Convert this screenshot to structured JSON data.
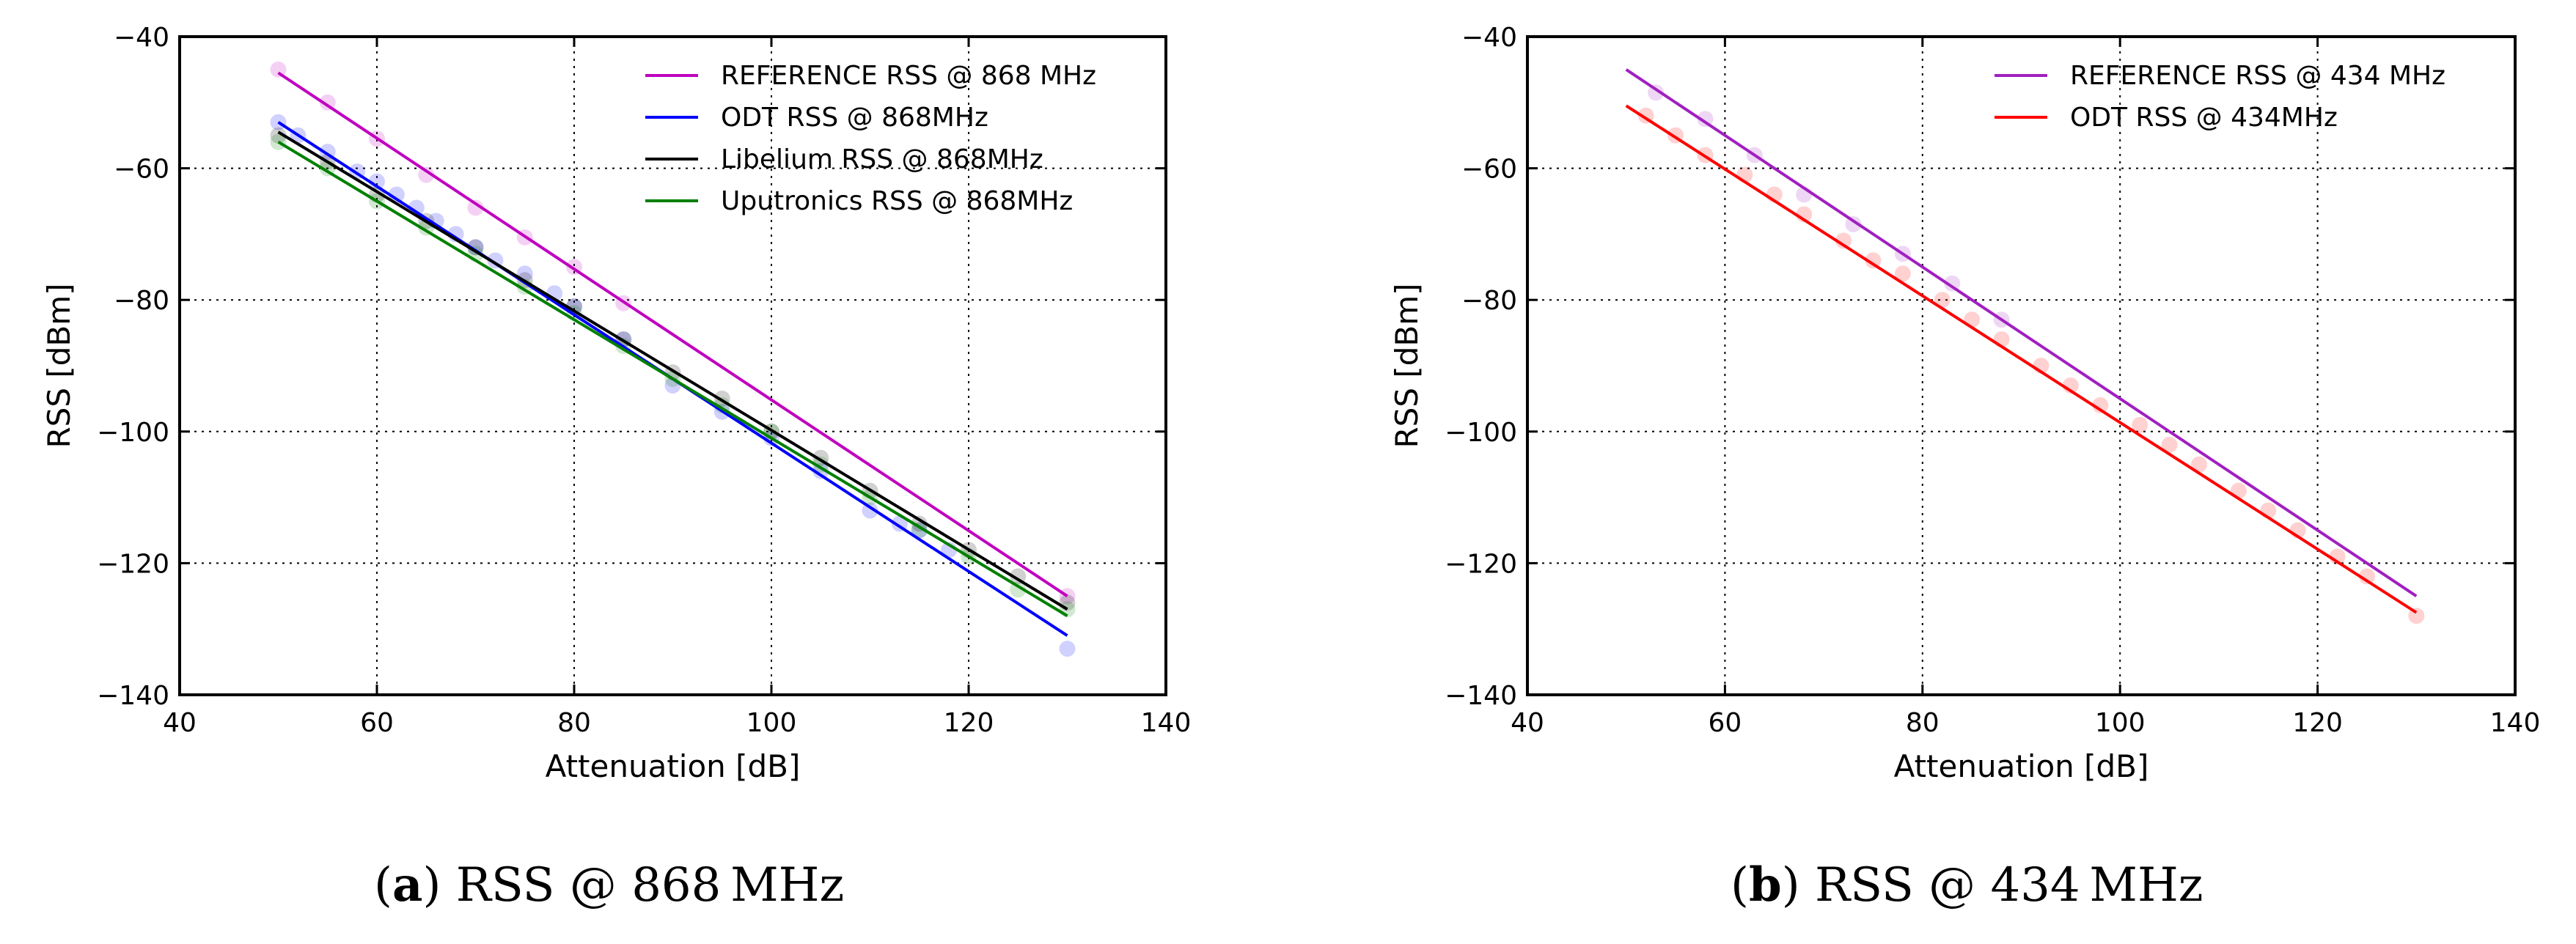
{
  "colors": {
    "reference": "#c000c0",
    "odt_868": "#0000ff",
    "libelium": "#000000",
    "uputronics": "#008000",
    "odt_434": "#ff0000",
    "reference_434": "#a020c0"
  },
  "chart_data": [
    {
      "type": "line",
      "title": "",
      "xlabel": "Attenuation [dB]",
      "ylabel": "RSS [dBm]",
      "xlim": [
        40,
        140
      ],
      "ylim": [
        -140,
        -40
      ],
      "xticks": [
        40,
        60,
        80,
        100,
        120,
        140
      ],
      "yticks": [
        -40,
        -60,
        -80,
        -100,
        -120,
        -140
      ],
      "xtick_labels": [
        "40",
        "60",
        "80",
        "100",
        "120",
        "140"
      ],
      "ytick_labels": [
        "−40",
        "−60",
        "−80",
        "−100",
        "−120",
        "−140"
      ],
      "grid": true,
      "legend_position": "top-right",
      "series": [
        {
          "name": "REFERENCE RSS @ 868 MHz",
          "color_key": "reference",
          "fit": {
            "x": [
              50,
              130
            ],
            "y": [
              -45.5,
              -125
            ]
          },
          "points": {
            "x": [
              50,
              55,
              60,
              65,
              70,
              75,
              80,
              85,
              130
            ],
            "y": [
              -45,
              -50,
              -55.5,
              -61,
              -66,
              -70.5,
              -75,
              -80.5,
              -125
            ]
          }
        },
        {
          "name": "ODT RSS @ 868MHz",
          "color_key": "odt_868",
          "fit": {
            "x": [
              50,
              130
            ],
            "y": [
              -53,
              -131
            ]
          },
          "points": {
            "x": [
              50,
              52,
              55,
              58,
              60,
              62,
              64,
              66,
              68,
              70,
              72,
              75,
              78,
              80,
              85,
              90,
              95,
              100,
              105,
              110,
              113,
              115,
              118,
              130
            ],
            "y": [
              -53,
              -55,
              -57.5,
              -60.5,
              -62,
              -64,
              -66,
              -68,
              -70,
              -72,
              -74,
              -76,
              -79,
              -81,
              -86,
              -93,
              -97,
              -101,
              -106,
              -112,
              -114,
              -115,
              -118,
              -133
            ]
          }
        },
        {
          "name": "Libelium RSS @ 868MHz",
          "color_key": "libelium",
          "fit": {
            "x": [
              50,
              130
            ],
            "y": [
              -54.5,
              -127
            ]
          },
          "points": {
            "x": [
              50,
              55,
              60,
              65,
              70,
              75,
              80,
              85,
              90,
              95,
              100,
              105,
              110,
              115,
              120,
              125,
              130
            ],
            "y": [
              -55,
              -59,
              -64,
              -68,
              -72,
              -77,
              -81,
              -86,
              -91,
              -95,
              -100,
              -104,
              -109,
              -114,
              -118,
              -122,
              -126
            ]
          }
        },
        {
          "name": "Uputronics RSS @ 868MHz",
          "color_key": "uputronics",
          "fit": {
            "x": [
              50,
              130
            ],
            "y": [
              -56,
              -128
            ]
          },
          "points": {
            "x": [
              50,
              55,
              60,
              65,
              70,
              75,
              80,
              85,
              90,
              95,
              100,
              105,
              110,
              115,
              120,
              125,
              130
            ],
            "y": [
              -56,
              -60,
              -65,
              -69,
              -73,
              -78,
              -82,
              -87,
              -92,
              -96,
              -100,
              -105,
              -110,
              -115,
              -119,
              -124,
              -127
            ]
          }
        }
      ]
    },
    {
      "type": "line",
      "title": "",
      "xlabel": "Attenuation [dB]",
      "ylabel": "RSS [dBm]",
      "xlim": [
        40,
        140
      ],
      "ylim": [
        -140,
        -40
      ],
      "xticks": [
        40,
        60,
        80,
        100,
        120,
        140
      ],
      "yticks": [
        -40,
        -60,
        -80,
        -100,
        -120,
        -140
      ],
      "xtick_labels": [
        "40",
        "60",
        "80",
        "100",
        "120",
        "140"
      ],
      "ytick_labels": [
        "−40",
        "−60",
        "−80",
        "−100",
        "−120",
        "−140"
      ],
      "grid": true,
      "legend_position": "top-right",
      "series": [
        {
          "name": "REFERENCE RSS @ 434 MHz",
          "color_key": "reference_434",
          "fit": {
            "x": [
              50,
              130
            ],
            "y": [
              -45,
              -125
            ]
          },
          "points": {
            "x": [
              53,
              58,
              63,
              68,
              73,
              78,
              83,
              88
            ],
            "y": [
              -48.5,
              -52.5,
              -58,
              -64,
              -68.5,
              -73,
              -77.5,
              -83
            ]
          }
        },
        {
          "name": "ODT RSS @ 434MHz",
          "color_key": "odt_434",
          "fit": {
            "x": [
              50,
              130
            ],
            "y": [
              -50.5,
              -127.5
            ]
          },
          "points": {
            "x": [
              52,
              55,
              58,
              62,
              65,
              68,
              72,
              75,
              78,
              82,
              85,
              88,
              92,
              95,
              98,
              102,
              105,
              108,
              112,
              115,
              118,
              122,
              125,
              130
            ],
            "y": [
              -52,
              -55,
              -58,
              -61,
              -64,
              -67,
              -71,
              -74,
              -76,
              -80,
              -83,
              -86,
              -90,
              -93,
              -96,
              -99,
              -102,
              -105,
              -109,
              -112,
              -115,
              -119,
              -122,
              -128
            ]
          }
        }
      ]
    }
  ],
  "captions": [
    {
      "letter": "a",
      "text": "RSS @ 868 MHz"
    },
    {
      "letter": "b",
      "text": "RSS @ 434 MHz"
    }
  ]
}
